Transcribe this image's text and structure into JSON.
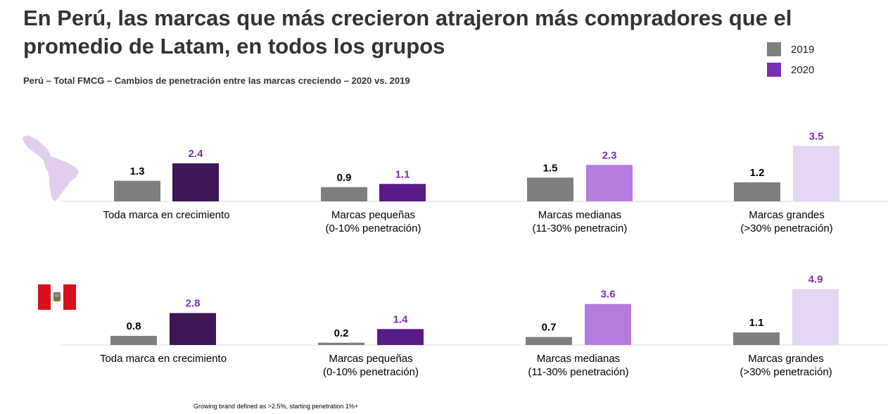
{
  "title": "En Perú, las marcas que más crecieron atrajeron más compradores que el promedio de Latam, en todos los grupos",
  "subtitle": "Perú – Total FMCG –  Cambios de penetración entre las marcas creciendo – 2020 vs. 2019",
  "legend": [
    {
      "label": "2019",
      "color": "#7f7f7f"
    },
    {
      "label": "2020",
      "color": "#7a2fb3"
    }
  ],
  "footnote": "Growing brand defined as >2.5%, starting penetration 1%+",
  "chart_data": [
    {
      "type": "bar",
      "region": "Latam",
      "series_names": [
        "2019",
        "2020"
      ],
      "groups": [
        {
          "label_lines": [
            "Toda marca en crecimiento"
          ],
          "values": [
            1.3,
            2.4
          ],
          "colors_2020": "#3f1656"
        },
        {
          "label_lines": [
            "Marcas pequeñas",
            "(0-10% penetración)"
          ],
          "values": [
            0.9,
            1.1
          ],
          "colors_2020": "#5a1a8a"
        },
        {
          "label_lines": [
            "Marcas medianas",
            "(11-30% penetracin)"
          ],
          "values": [
            1.5,
            2.3
          ],
          "colors_2020": "#b57bdf"
        },
        {
          "label_lines": [
            "Marcas grandes",
            "(>30% penetración)"
          ],
          "values": [
            1.2,
            3.5
          ],
          "colors_2020": "#e6d4f4"
        }
      ],
      "colors_2019": "#7f7f7f",
      "label_color_2019": "#000000",
      "label_color_2020": "#7a2fb3"
    },
    {
      "type": "bar",
      "region": "Perú",
      "series_names": [
        "2019",
        "2020"
      ],
      "groups": [
        {
          "label_lines": [
            "Toda marca en crecimiento"
          ],
          "values": [
            0.8,
            2.8
          ],
          "colors_2020": "#3f1656"
        },
        {
          "label_lines": [
            "Marcas pequeñas",
            "(0-10% penetración)"
          ],
          "values": [
            0.2,
            1.4
          ],
          "colors_2020": "#5a1a8a"
        },
        {
          "label_lines": [
            "Marcas medianas",
            "(11-30% penetración)"
          ],
          "values": [
            0.7,
            3.6
          ],
          "colors_2020": "#b57bdf"
        },
        {
          "label_lines": [
            "Marcas grandes",
            "(>30% penetración)"
          ],
          "values": [
            1.1,
            4.9
          ],
          "colors_2020": "#e6d4f4"
        }
      ],
      "colors_2019": "#7f7f7f",
      "label_color_2019": "#000000",
      "label_color_2020": "#7a2fb3"
    }
  ]
}
